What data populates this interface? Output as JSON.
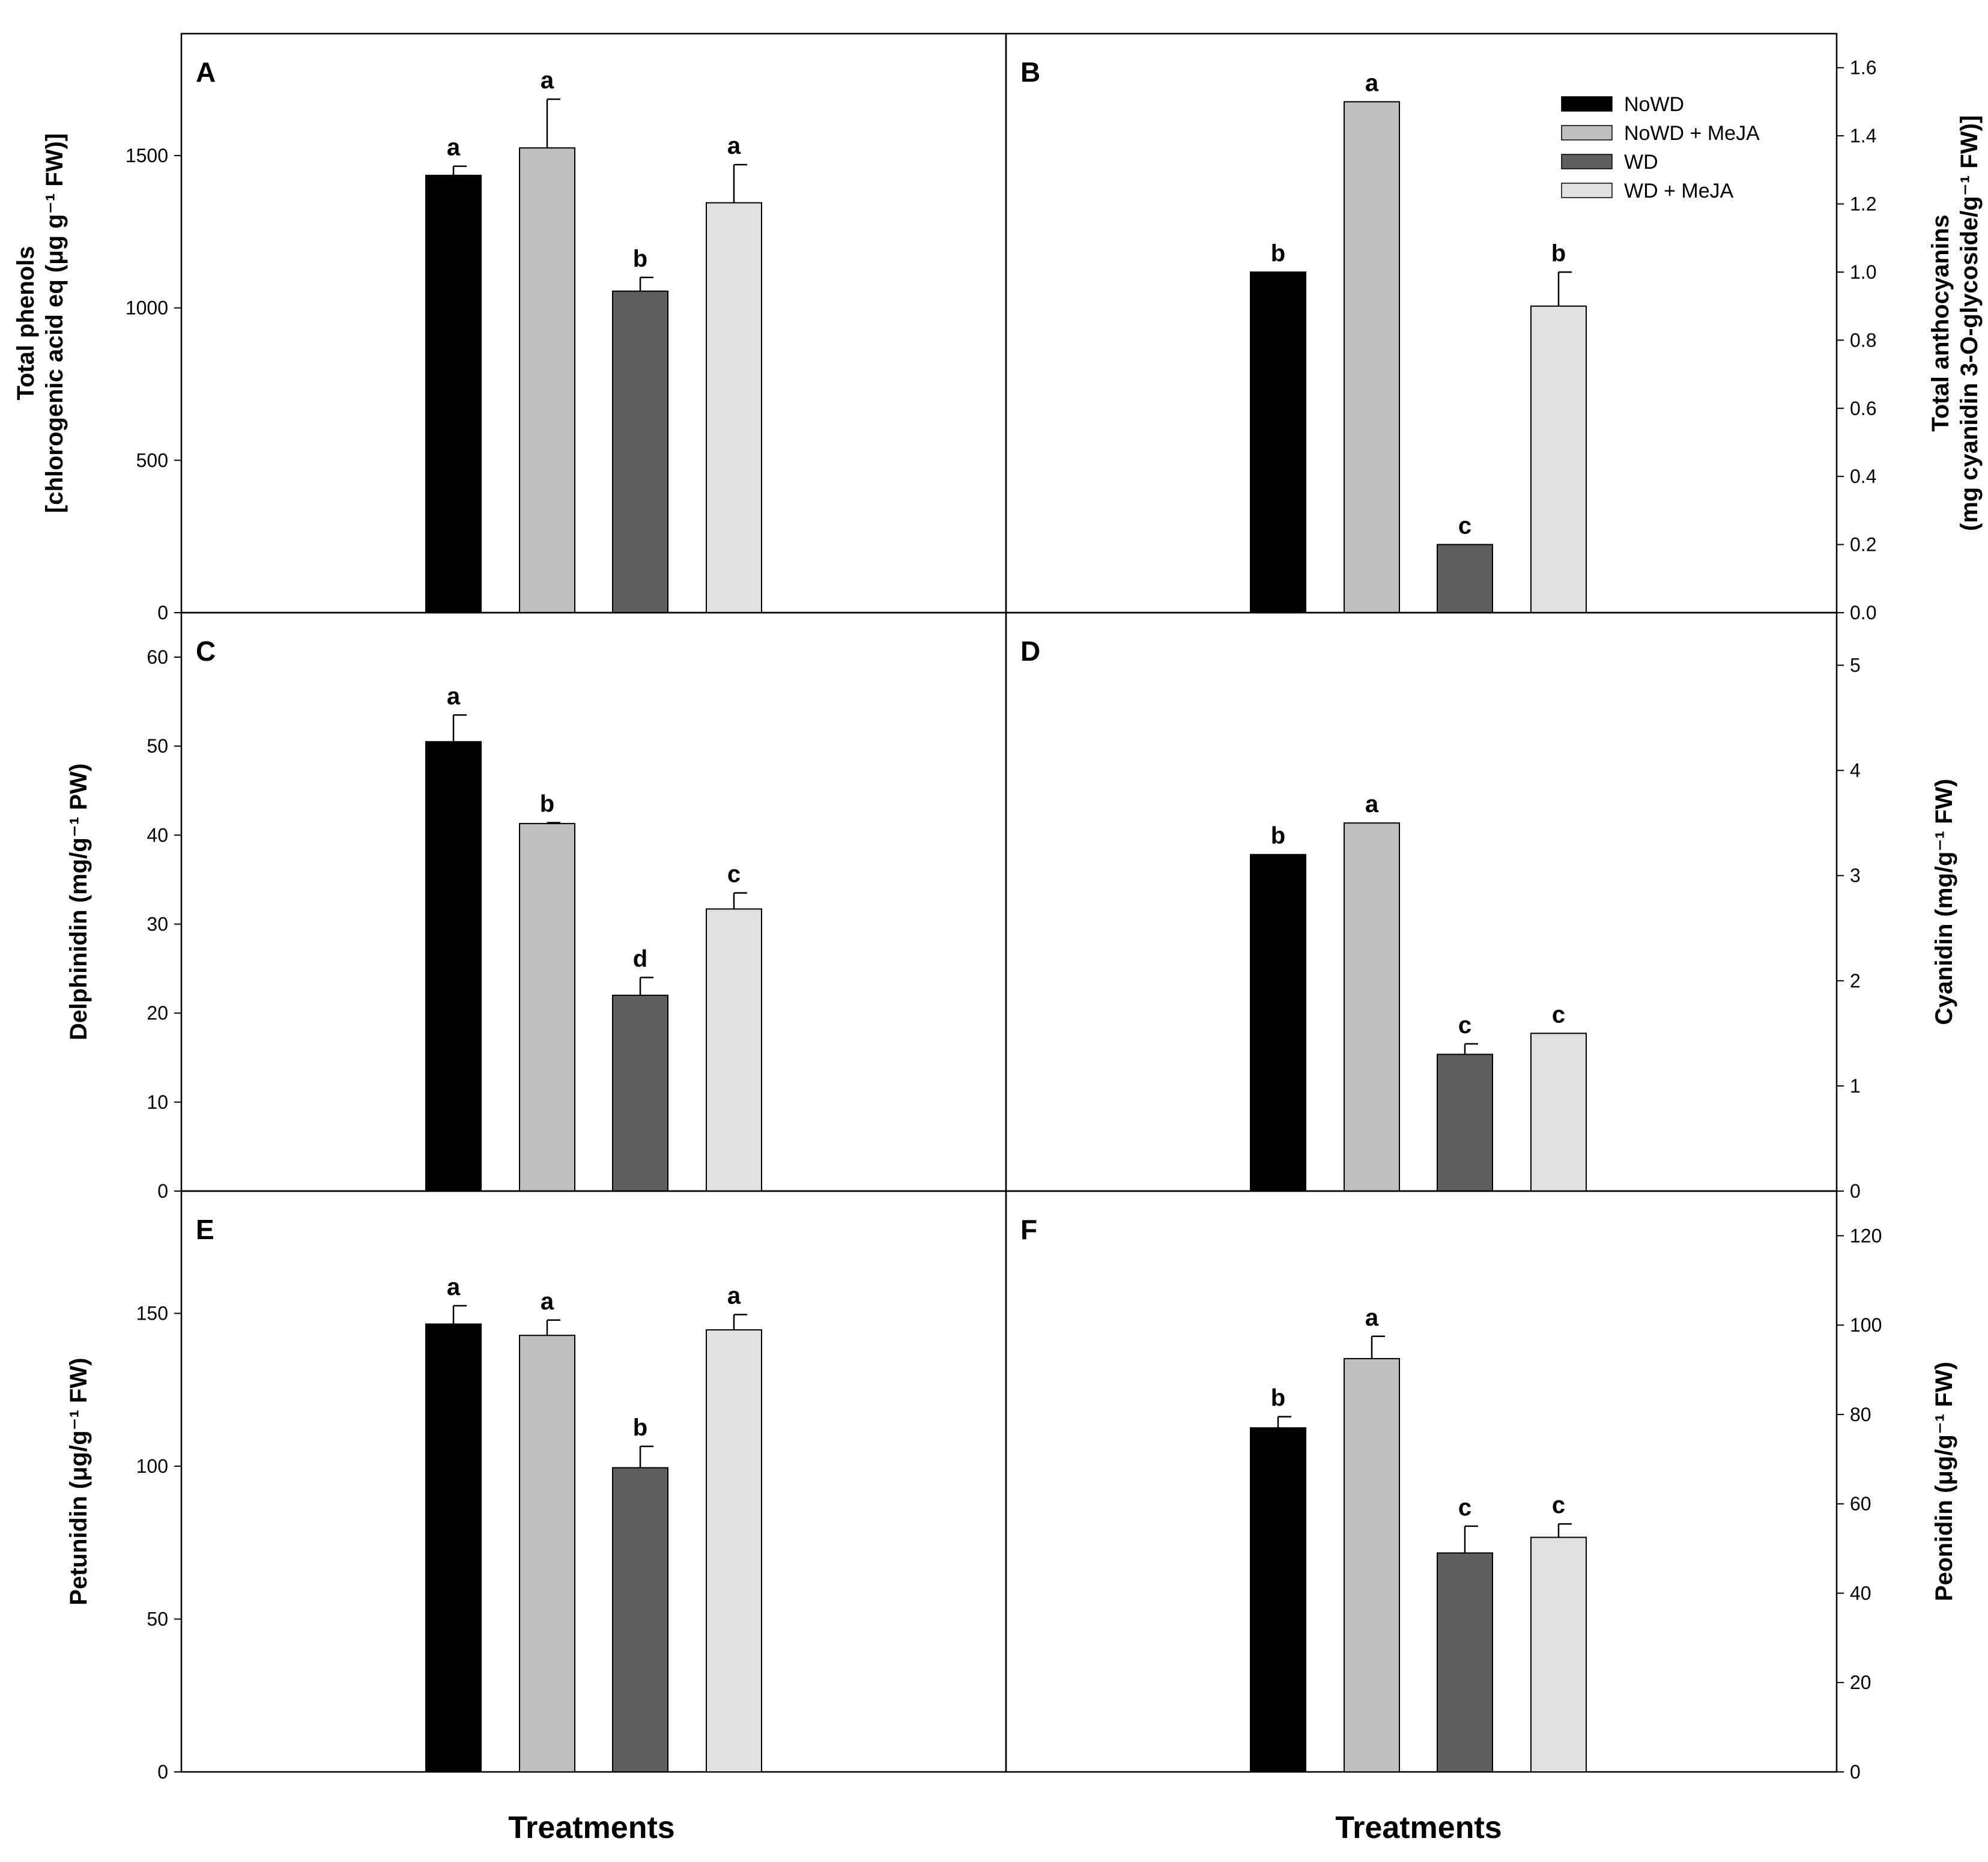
{
  "legend": [
    {
      "label": "NoWD",
      "color": "#000000"
    },
    {
      "label": "NoWD + MeJA",
      "color": "#bfbfbf"
    },
    {
      "label": "WD",
      "color": "#5f5f5f"
    },
    {
      "label": "WD + MeJA",
      "color": "#e0e0e0"
    }
  ],
  "x_axis_titles": [
    "Treatments",
    "Treatments"
  ],
  "chart_data": [
    {
      "panel": "A",
      "type": "bar",
      "categories": [
        "NoWD",
        "NoWD + MeJA",
        "WD",
        "WD + MeJA"
      ],
      "values": [
        1435,
        1525,
        1055,
        1345
      ],
      "errors": [
        30,
        160,
        45,
        125
      ],
      "significance": [
        "a",
        "a",
        "b",
        "a"
      ],
      "ylabel": [
        "Total phenols",
        "[chlorogenic acid eq (μg g⁻¹ FW)]"
      ],
      "ylim": [
        0,
        1900
      ],
      "yticks": [
        0,
        500,
        1000,
        1500
      ],
      "yticklabels": [
        "0",
        "500",
        "1000",
        "1500"
      ],
      "yaxis_side": "left"
    },
    {
      "panel": "B",
      "type": "bar",
      "categories": [
        "NoWD",
        "NoWD + MeJA",
        "WD",
        "WD + MeJA"
      ],
      "values": [
        1.0,
        1.5,
        0.2,
        0.9
      ],
      "errors": [
        0,
        0,
        0,
        0.1
      ],
      "significance": [
        "b",
        "a",
        "c",
        "b"
      ],
      "ylabel": [
        "Total anthocyanins",
        "(mg cyanidin 3-O-glycoside/g⁻¹ FW)]"
      ],
      "ylim": [
        0,
        1.7
      ],
      "yticks": [
        0,
        0.2,
        0.4,
        0.6,
        0.8,
        1.0,
        1.2,
        1.4,
        1.6
      ],
      "yticklabels": [
        "0.0",
        "0.2",
        "0.4",
        "0.6",
        "0.8",
        "1.0",
        "1.2",
        "1.4",
        "1.6"
      ],
      "yaxis_side": "right"
    },
    {
      "panel": "C",
      "type": "bar",
      "categories": [
        "NoWD",
        "NoWD + MeJA",
        "WD",
        "WD + MeJA"
      ],
      "values": [
        50.5,
        41.3,
        22.0,
        31.7
      ],
      "errors": [
        3.0,
        0.1,
        2.0,
        1.8
      ],
      "significance": [
        "a",
        "b",
        "d",
        "c"
      ],
      "ylabel": [
        "Delphinidin (mg/g⁻¹ PW)"
      ],
      "ylim": [
        0,
        65
      ],
      "yticks": [
        0,
        10,
        20,
        30,
        40,
        50,
        60
      ],
      "yticklabels": [
        "0",
        "10",
        "20",
        "30",
        "40",
        "50",
        "60"
      ],
      "yaxis_side": "left"
    },
    {
      "panel": "D",
      "type": "bar",
      "categories": [
        "NoWD",
        "NoWD + MeJA",
        "WD",
        "WD + MeJA"
      ],
      "values": [
        3.2,
        3.5,
        1.3,
        1.5
      ],
      "errors": [
        0,
        0,
        0.1,
        0
      ],
      "significance": [
        "b",
        "a",
        "c",
        "c"
      ],
      "ylabel": [
        "Cyanidin (mg/g⁻¹ FW)"
      ],
      "ylim": [
        0,
        5.5
      ],
      "yticks": [
        0,
        1,
        2,
        3,
        4,
        5
      ],
      "yticklabels": [
        "0",
        "1",
        "2",
        "3",
        "4",
        "5"
      ],
      "yaxis_side": "right"
    },
    {
      "panel": "E",
      "type": "bar",
      "categories": [
        "NoWD",
        "NoWD + MeJA",
        "WD",
        "WD + MeJA"
      ],
      "values": [
        146.5,
        142.8,
        99.5,
        144.6
      ],
      "errors": [
        6.0,
        5.0,
        7.0,
        5.0
      ],
      "significance": [
        "a",
        "a",
        "b",
        "a"
      ],
      "ylabel": [
        "Petunidin (μg/g⁻¹ FW)"
      ],
      "ylim": [
        0,
        190
      ],
      "yticks": [
        0,
        50,
        100,
        150
      ],
      "yticklabels": [
        "0",
        "50",
        "100",
        "150"
      ],
      "yaxis_side": "left"
    },
    {
      "panel": "F",
      "type": "bar",
      "categories": [
        "NoWD",
        "NoWD + MeJA",
        "WD",
        "WD + MeJA"
      ],
      "values": [
        77,
        92.5,
        49,
        52.5
      ],
      "errors": [
        2.5,
        5.0,
        6.0,
        3.0
      ],
      "significance": [
        "b",
        "a",
        "c",
        "c"
      ],
      "ylabel": [
        "Peonidin (μg/g⁻¹ FW)"
      ],
      "ylim": [
        0,
        130
      ],
      "yticks": [
        0,
        20,
        40,
        60,
        80,
        100,
        120
      ],
      "yticklabels": [
        "0",
        "20",
        "40",
        "60",
        "80",
        "100",
        "120"
      ],
      "yaxis_side": "right"
    }
  ]
}
